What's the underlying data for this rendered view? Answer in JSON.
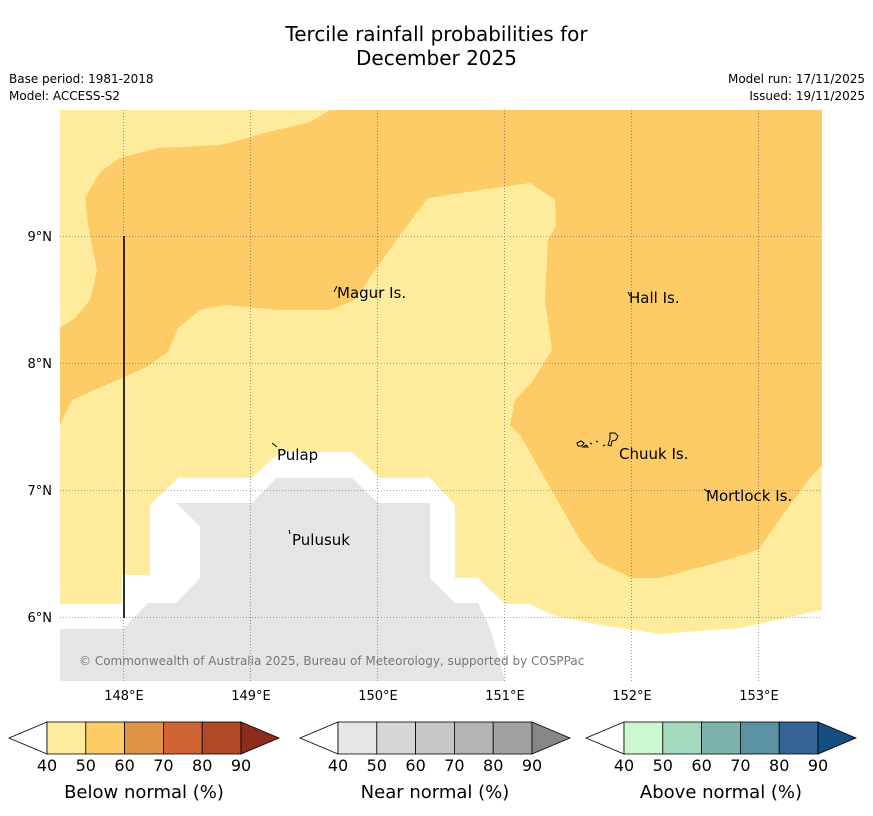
{
  "title": {
    "line1": "Tercile rainfall probabilities for",
    "line2": "December 2025"
  },
  "meta": {
    "base_period": "Base period: 1981-2018",
    "model": "Model: ACCESS-S2",
    "model_run": "Model run: 17/11/2025",
    "issued": "Issued: 19/11/2025"
  },
  "map": {
    "x_ticks": [
      "148°E",
      "149°E",
      "150°E",
      "151°E",
      "152°E",
      "153°E"
    ],
    "y_ticks": [
      "9°N",
      "8°N",
      "7°N",
      "6°N"
    ],
    "places": [
      "Magur Is.",
      "Hall Is.",
      "Pulap",
      "Chuuk Is.",
      "Mortlock Is.",
      "Pulusuk"
    ],
    "copyright": "© Commonwealth of Australia 2025, Bureau of Meteorology, supported by COSPPac",
    "colors": {
      "below_40_50": "#ffeb9c",
      "below_50_60": "#fdcc66",
      "near_normal": "#e5e5e5",
      "no_signal": "#ffffff"
    }
  },
  "legends": [
    {
      "title": "Below normal (%)",
      "labels": [
        "40",
        "50",
        "60",
        "70",
        "80",
        "90"
      ],
      "colors": [
        "#ffeb9c",
        "#fdcc66",
        "#e09446",
        "#cd6431",
        "#b04a26",
        "#8c2c1c"
      ]
    },
    {
      "title": "Near normal (%)",
      "labels": [
        "40",
        "50",
        "60",
        "70",
        "80",
        "90"
      ],
      "colors": [
        "#e5e5e5",
        "#d6d6d6",
        "#c6c6c6",
        "#b3b3b3",
        "#a2a2a2",
        "#868686"
      ]
    },
    {
      "title": "Above normal (%)",
      "labels": [
        "40",
        "50",
        "60",
        "70",
        "80",
        "90"
      ],
      "colors": [
        "#cbf7ce",
        "#a4d9bd",
        "#7db3ad",
        "#5c93a2",
        "#346595",
        "#144d80"
      ]
    }
  ]
}
